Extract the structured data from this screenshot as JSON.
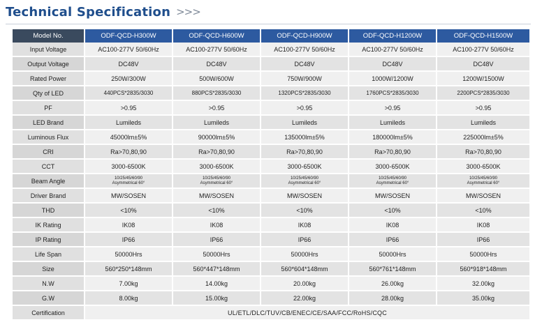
{
  "title": "Technical Specification",
  "title_chevrons": ">>>",
  "colors": {
    "title": "#1f4e8c",
    "header_model": "#2d5aa0",
    "header_label": "#3a4a5e"
  },
  "header": {
    "label": "Model No.",
    "models": [
      "ODF-QCD-H300W",
      "ODF-QCD-H600W",
      "ODF-QCD-H900W",
      "ODF-QCD-H1200W",
      "ODF-QCD-H1500W"
    ]
  },
  "rows": [
    {
      "label": "Input Voltage",
      "values": [
        "AC100-277V 50/60Hz",
        "AC100-277V 50/60Hz",
        "AC100-277V 50/60Hz",
        "AC100-277V 50/60Hz",
        "AC100-277V 50/60Hz"
      ]
    },
    {
      "label": "Output Voltage",
      "values": [
        "DC48V",
        "DC48V",
        "DC48V",
        "DC48V",
        "DC48V"
      ]
    },
    {
      "label": "Rated Power",
      "values": [
        "250W/300W",
        "500W/600W",
        "750W/900W",
        "1000W/1200W",
        "1200W/1500W"
      ]
    },
    {
      "label": "Qty of LED",
      "values": [
        "440PCS*2835/3030",
        "880PCS*2835/3030",
        "1320PCS*2835/3030",
        "1760PCS*2835/3030",
        "2200PCS*2835/3030"
      ]
    },
    {
      "label": "PF",
      "values": [
        ">0.95",
        ">0.95",
        ">0.95",
        ">0.95",
        ">0.95"
      ]
    },
    {
      "label": "LED Brand",
      "values": [
        "Lumileds",
        "Lumileds",
        "Lumileds",
        "Lumileds",
        "Lumileds"
      ]
    },
    {
      "label": "Luminous Flux",
      "values": [
        "45000lm±5%",
        "90000lm±5%",
        "135000lm±5%",
        "180000lm±5%",
        "225000lm±5%"
      ]
    },
    {
      "label": "CRI",
      "values": [
        "Ra>70,80,90",
        "Ra>70,80,90",
        "Ra>70,80,90",
        "Ra>70,80,90",
        "Ra>70,80,90"
      ]
    },
    {
      "label": "CCT",
      "values": [
        "3000-6500K",
        "3000-6500K",
        "3000-6500K",
        "3000-6500K",
        "3000-6500K"
      ]
    },
    {
      "label": "Beam Angle",
      "beam": true,
      "values": [
        [
          "10/25/45/60/90",
          "Asymmetrical 60°"
        ],
        [
          "10/25/45/60/90",
          "Asymmetrical 60°"
        ],
        [
          "10/25/45/60/90",
          "Asymmetrical 60°"
        ],
        [
          "10/25/45/60/90",
          "Asymmetrical 60°"
        ],
        [
          "10/25/45/60/90",
          "Asymmetrical 60°"
        ]
      ]
    },
    {
      "label": "Driver Brand",
      "values": [
        "MW/SOSEN",
        "MW/SOSEN",
        "MW/SOSEN",
        "MW/SOSEN",
        "MW/SOSEN"
      ]
    },
    {
      "label": "THD",
      "values": [
        "<10%",
        "<10%",
        "<10%",
        "<10%",
        "<10%"
      ]
    },
    {
      "label": "IK Rating",
      "values": [
        "IK08",
        "IK08",
        "IK08",
        "IK08",
        "IK08"
      ]
    },
    {
      "label": "IP Rating",
      "values": [
        "IP66",
        "IP66",
        "IP66",
        "IP66",
        "IP66"
      ]
    },
    {
      "label": "Life Span",
      "values": [
        "50000Hrs",
        "50000Hrs",
        "50000Hrs",
        "50000Hrs",
        "50000Hrs"
      ]
    },
    {
      "label": "Size",
      "values": [
        "560*250*148mm",
        "560*447*148mm",
        "560*604*148mm",
        "560*761*148mm",
        "560*918*148mm"
      ]
    },
    {
      "label": "N.W",
      "values": [
        "7.00kg",
        "14.00kg",
        "20.00kg",
        "26.00kg",
        "32.00kg"
      ]
    },
    {
      "label": "G.W",
      "values": [
        "8.00kg",
        "15.00kg",
        "22.00kg",
        "28.00kg",
        "35.00kg"
      ]
    }
  ],
  "certification": {
    "label": "Certification",
    "value": "UL/ETL/DLC/TUV/CB/ENEC/CE/SAA/FCC/RoHS/CQC"
  }
}
